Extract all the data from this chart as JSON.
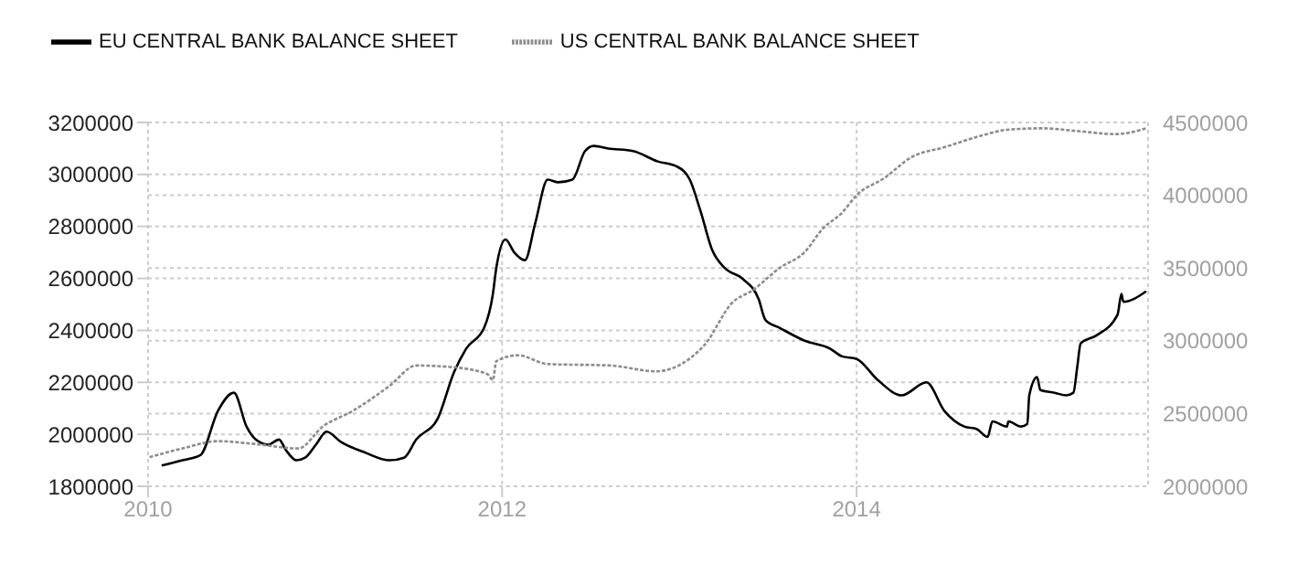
{
  "chart_data": {
    "type": "line",
    "legend": "top left",
    "grid": true,
    "xlim": [
      "2010",
      "2015-08-25"
    ],
    "xticks": [
      "2010",
      "2012",
      "2014"
    ],
    "ylim": [
      1800000,
      3200000
    ],
    "yticks": [
      1800000,
      2000000,
      2200000,
      2400000,
      2600000,
      2800000,
      3000000,
      3200000
    ],
    "y2lim": [
      2000000,
      4500000
    ],
    "y2ticks": [
      2000000,
      2500000,
      3000000,
      3500000,
      4000000,
      4500000
    ],
    "series": [
      {
        "name": "EU CENTRAL BANK BALANCE SHEET",
        "color": "#000000",
        "line_style": "solid",
        "x": [
          "2010-01-29",
          "2010-03-13",
          "2010-04-19",
          "2010-05-25",
          "2010-06-27",
          "2010-07-23",
          "2010-08-11",
          "2010-09-06",
          "2010-09-28",
          "2010-10-12",
          "2010-11-03",
          "2010-11-21",
          "2010-12-13",
          "2011-01-04",
          "2011-02-03",
          "2011-03-24",
          "2011-05-14",
          "2011-06-13",
          "2011-07-08",
          "2011-08-21",
          "2011-09-24",
          "2011-10-19",
          "2011-11-25",
          "2011-12-13",
          "2011-12-20",
          "2012-01-08",
          "2012-01-26",
          "2012-02-17",
          "2012-03-09",
          "2012-04-04",
          "2012-04-26",
          "2012-05-25",
          "2012-06-20",
          "2012-07-08",
          "2012-08-07",
          "2012-09-27",
          "2012-11-17",
          "2012-12-27",
          "2013-01-22",
          "2013-02-13",
          "2013-03-09",
          "2013-04-04",
          "2013-05-10",
          "2013-06-13",
          "2013-06-27",
          "2013-07-26",
          "2013-09-16",
          "2013-11-07",
          "2013-12-02",
          "2014-01-01",
          "2014-02-13",
          "2014-04-04",
          "2014-05-25",
          "2014-07-01",
          "2014-08-11",
          "2014-09-06",
          "2014-09-28",
          "2014-10-08",
          "2014-11-07",
          "2014-11-10",
          "2014-12-06",
          "2014-12-19",
          "2014-12-23",
          "2015-01-08",
          "2015-01-15",
          "2015-02-13",
          "2015-03-09",
          "2015-03-24",
          "2015-04-01",
          "2015-04-08",
          "2015-05-10",
          "2015-06-23",
          "2015-07-01",
          "2015-07-05",
          "2015-08-21"
        ],
        "values": [
          1880000,
          1900000,
          1920000,
          2090000,
          2160000,
          2030000,
          1980000,
          1960000,
          1980000,
          1940000,
          1900000,
          1910000,
          1960000,
          2010000,
          1970000,
          1930000,
          1900000,
          1910000,
          1980000,
          2060000,
          2240000,
          2330000,
          2410000,
          2540000,
          2640000,
          2750000,
          2700000,
          2670000,
          2810000,
          2980000,
          2970000,
          2980000,
          3090000,
          3110000,
          3100000,
          3090000,
          3050000,
          3030000,
          2980000,
          2860000,
          2710000,
          2640000,
          2600000,
          2520000,
          2440000,
          2410000,
          2360000,
          2330000,
          2300000,
          2290000,
          2210000,
          2150000,
          2200000,
          2090000,
          2030000,
          2020000,
          1990000,
          2050000,
          2030000,
          2050000,
          2030000,
          2040000,
          2150000,
          2220000,
          2170000,
          2160000,
          2150000,
          2160000,
          2260000,
          2350000,
          2380000,
          2460000,
          2540000,
          2510000,
          2550000
        ]
      },
      {
        "name": "US CENTRAL BANK BALANCE SHEET",
        "color": "#8c8c8c",
        "line_style": "dotted",
        "axis": "y2",
        "x": [
          "2010-01-04",
          "2010-03-13",
          "2010-05-25",
          "2010-08-11",
          "2010-11-07",
          "2010-12-27",
          "2011-02-28",
          "2011-05-14",
          "2011-07-08",
          "2011-09-16",
          "2011-12-02",
          "2011-12-13",
          "2011-12-20",
          "2012-02-03",
          "2012-04-04",
          "2012-08-11",
          "2012-11-13",
          "2013-02-21",
          "2013-04-19",
          "2013-06-02",
          "2013-07-26",
          "2013-09-16",
          "2013-10-23",
          "2013-12-02",
          "2014-01-01",
          "2014-02-28",
          "2014-04-23",
          "2014-07-01",
          "2014-09-16",
          "2014-11-07",
          "2015-01-19",
          "2015-04-04",
          "2015-06-20",
          "2015-08-21"
        ],
        "values": [
          2200000,
          2260000,
          2310000,
          2290000,
          2260000,
          2410000,
          2520000,
          2690000,
          2830000,
          2820000,
          2770000,
          2730000,
          2860000,
          2900000,
          2840000,
          2830000,
          2790000,
          2970000,
          3260000,
          3350000,
          3500000,
          3610000,
          3770000,
          3880000,
          4000000,
          4120000,
          4260000,
          4330000,
          4410000,
          4450000,
          4460000,
          4440000,
          4420000,
          4460000
        ]
      }
    ]
  }
}
